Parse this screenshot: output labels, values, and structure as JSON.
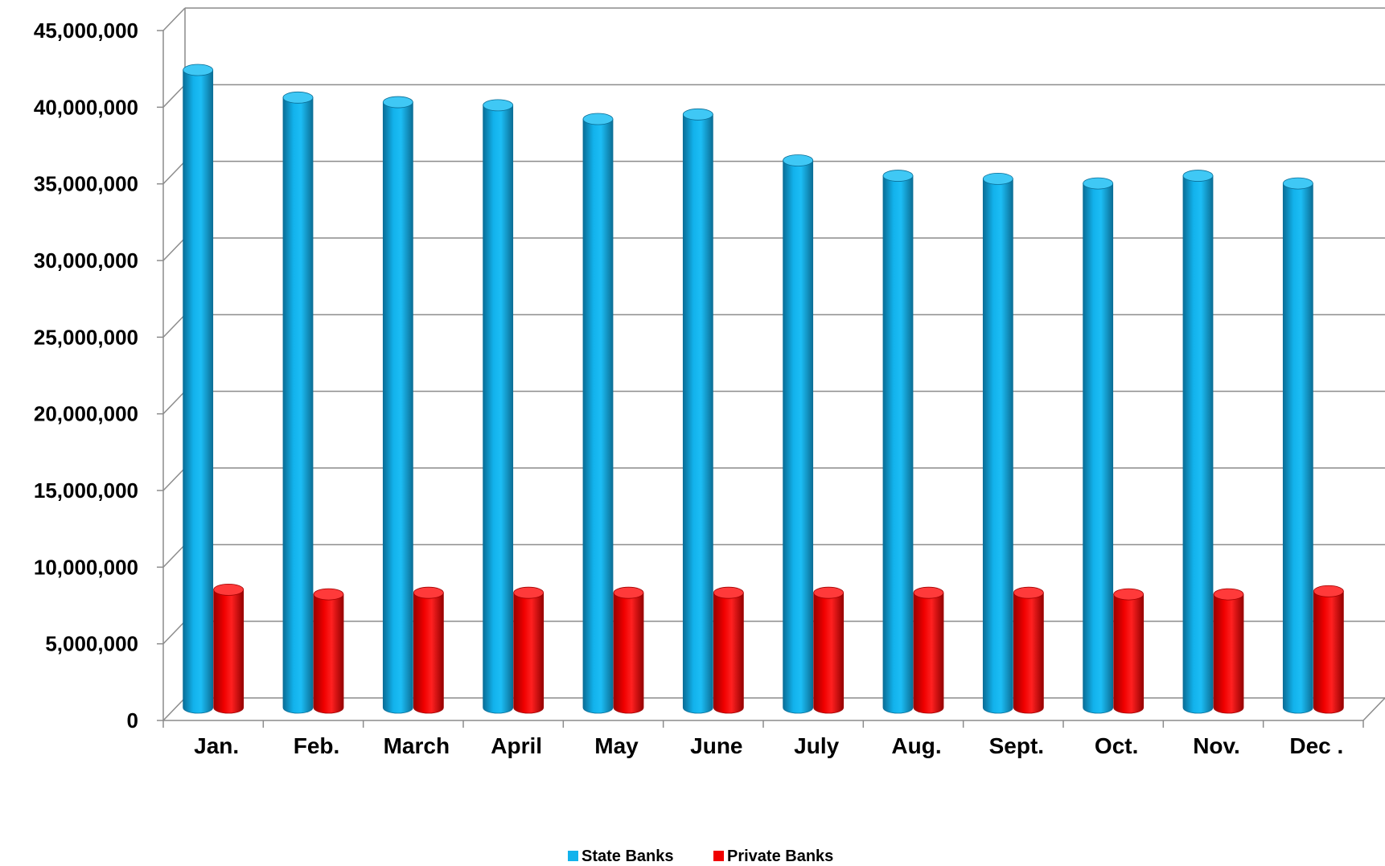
{
  "chart_data": {
    "type": "bar",
    "title": "",
    "xlabel": "",
    "ylabel": "",
    "categories": [
      "Jan.",
      "Feb.",
      "March",
      "April",
      "May",
      "June",
      "July",
      "Aug.",
      "Sept.",
      "Oct.",
      "Nov.",
      "Dec ."
    ],
    "series": [
      {
        "name": "State Banks",
        "color": "#12B2EC",
        "values": [
          41800000,
          40000000,
          39700000,
          39500000,
          38600000,
          38900000,
          35900000,
          34900000,
          34700000,
          34400000,
          34900000,
          34400000
        ]
      },
      {
        "name": "Private Banks",
        "color": "#F00000",
        "values": [
          7900000,
          7600000,
          7700000,
          7700000,
          7700000,
          7700000,
          7700000,
          7700000,
          7700000,
          7600000,
          7600000,
          7800000
        ]
      }
    ],
    "ylim": [
      0,
      45000000
    ],
    "yticks": [
      0,
      5000000,
      10000000,
      15000000,
      20000000,
      25000000,
      30000000,
      35000000,
      40000000,
      45000000
    ],
    "ytick_labels": [
      "0",
      "5,000,000",
      "10,000,000",
      "15,000,000",
      "20,000,000",
      "25,000,000",
      "30,000,000",
      "35,000,000",
      "40,000,000",
      "45,000,000"
    ],
    "grid": true,
    "legend_position": "bottom-center",
    "style": "3d-cylinder"
  }
}
